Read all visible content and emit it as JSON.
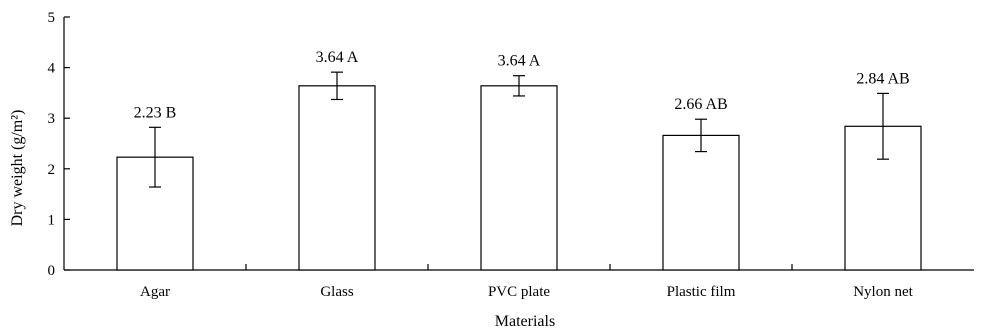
{
  "chart_data": {
    "type": "bar",
    "title": "",
    "xlabel": "Materials",
    "ylabel": "Dry weight (g/m²)",
    "ylim": [
      0,
      5
    ],
    "yticks": [
      "0",
      "1",
      "2",
      "3",
      "4",
      "5"
    ],
    "categories": [
      "Agar",
      "Glass",
      "PVC plate",
      "Plastic film",
      "Nylon net"
    ],
    "values": [
      2.23,
      3.64,
      3.64,
      2.66,
      2.84
    ],
    "error": [
      0.59,
      0.27,
      0.2,
      0.32,
      0.65
    ],
    "data_labels": [
      "2.23 B",
      "3.64 A",
      "3.64 A",
      "2.66 AB",
      "2.84 AB"
    ],
    "grid": false,
    "legend": "none",
    "colors": {
      "bar_fill": "#ffffff",
      "bar_stroke": "#000000"
    }
  }
}
